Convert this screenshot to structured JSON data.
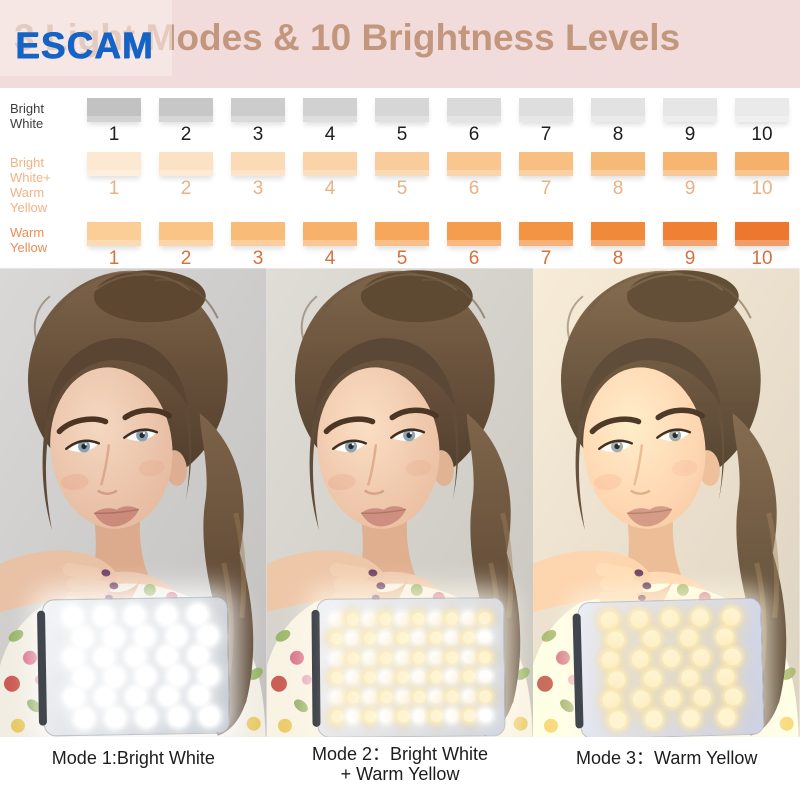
{
  "header": {
    "logo_text": "ESCAM",
    "title_prefix": "3 Light",
    "title_suffix": " Modes & 10 Brightness Levels",
    "colors": {
      "band_bg": "#f2dcdb",
      "logo_blue": "#1463c6",
      "title_tan": "#c2977d"
    }
  },
  "brightness_chart": {
    "type": "swatch-grid",
    "levels": [
      "1",
      "2",
      "3",
      "4",
      "5",
      "6",
      "7",
      "8",
      "9",
      "10"
    ],
    "rows": [
      {
        "id": "bright-white",
        "label_lines": [
          "Bright",
          "White"
        ],
        "label_color": "#3d3d3d",
        "number_color": "#1e1e1e",
        "swatches": [
          "#c2c2c2",
          "#c7c7c7",
          "#cccccc",
          "#d1d1d1",
          "#d6d6d6",
          "#dadada",
          "#dedede",
          "#e2e2e2",
          "#e6e6e6",
          "#eaeaea"
        ]
      },
      {
        "id": "bright-white-warm-yellow",
        "label_lines": [
          "Bright White+",
          "Warm Yellow"
        ],
        "label_color": "#f1b384",
        "number_color": "#e9b285",
        "swatches": [
          "#fde9d2",
          "#fce2c4",
          "#fbdbb6",
          "#fad4a8",
          "#f9cd9b",
          "#f8c68e",
          "#f7c082",
          "#f6ba78",
          "#f6b570",
          "#f5b069"
        ]
      },
      {
        "id": "warm-yellow",
        "label_lines": [
          "Warm",
          "Yellow"
        ],
        "label_color": "#ea8d53",
        "number_color": "#d6703c",
        "swatches": [
          "#fbcd97",
          "#fac487",
          "#f9bb78",
          "#f8b16a",
          "#f6a75c",
          "#f59d4f",
          "#f39344",
          "#f1893b",
          "#ef8034",
          "#ed772e"
        ]
      }
    ]
  },
  "photos": [
    {
      "mode": "bright-white",
      "caption_lines": [
        "Mode 1:Bright White"
      ]
    },
    {
      "mode": "bright-white-warm-yellow",
      "caption_lines": [
        "Mode 2：Bright White",
        "+ Warm Yellow"
      ]
    },
    {
      "mode": "warm-yellow",
      "caption_lines": [
        "Mode 3：Warm Yellow"
      ]
    }
  ],
  "panels": [
    {
      "style": "silver",
      "dot": "white",
      "rows": 6,
      "cols": 5,
      "alt_cols": 5,
      "alt_shift": true,
      "dot_size": 19
    },
    {
      "style": "white",
      "dot": "mix",
      "rows": 6,
      "cols": 10,
      "alt_cols": 10,
      "alt_shift": false,
      "dot_size": 12
    },
    {
      "style": "lavender",
      "dot": "warm",
      "rows": 6,
      "cols": 5,
      "alt_cols": 4,
      "alt_shift": false,
      "dot_size": 17
    }
  ]
}
